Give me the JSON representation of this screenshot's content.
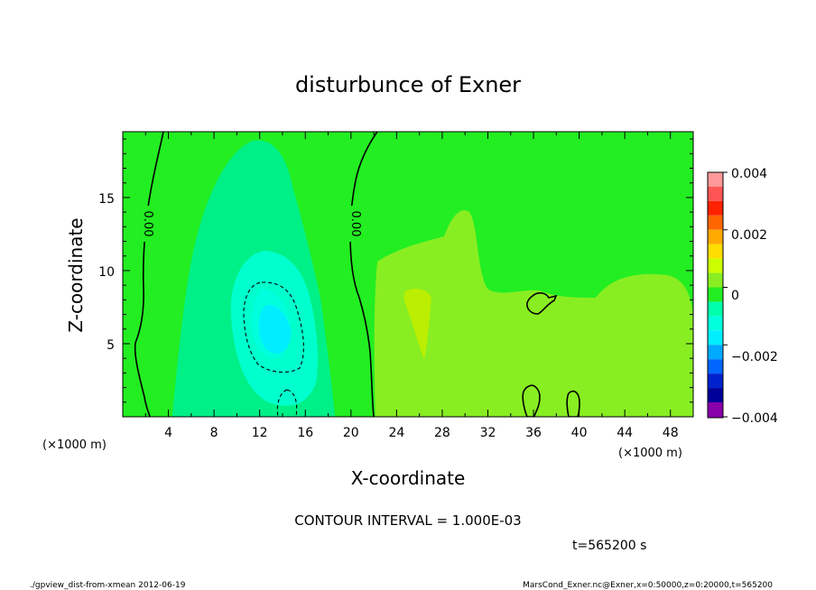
{
  "chart_data": {
    "type": "heatmap",
    "title": "disturbunce of Exner",
    "xlabel": "X-coordinate",
    "ylabel": "Z-coordinate",
    "x_unit": "(×1000 m)",
    "y_unit": "(×1000 m)",
    "x_ticks": [
      4,
      8,
      12,
      16,
      20,
      24,
      28,
      32,
      36,
      40,
      44,
      48
    ],
    "y_ticks": [
      5,
      10,
      15
    ],
    "xlim": [
      0,
      50
    ],
    "ylim": [
      0,
      19.5
    ],
    "colorbar": {
      "labels": [
        "0.004",
        "0.002",
        "0",
        "−0.002",
        "−0.004"
      ],
      "min": -0.004,
      "max": 0.004,
      "levels": [
        {
          "from": 0.0035,
          "to": 0.004,
          "color": "#ff9999"
        },
        {
          "from": 0.003,
          "to": 0.0035,
          "color": "#ff5555"
        },
        {
          "from": 0.0025,
          "to": 0.003,
          "color": "#ff2200"
        },
        {
          "from": 0.002,
          "to": 0.0025,
          "color": "#ff6600"
        },
        {
          "from": 0.0015,
          "to": 0.002,
          "color": "#ffaa00"
        },
        {
          "from": 0.001,
          "to": 0.0015,
          "color": "#ffdd00"
        },
        {
          "from": 0.0005,
          "to": 0.001,
          "color": "#ccff00"
        },
        {
          "from": 0.0,
          "to": 0.0005,
          "color": "#88ee22"
        },
        {
          "from": -0.0005,
          "to": 0.0,
          "color": "#22ee22"
        },
        {
          "from": -0.001,
          "to": -0.0005,
          "color": "#00ffaa"
        },
        {
          "from": -0.0015,
          "to": -0.001,
          "color": "#00ffdd"
        },
        {
          "from": -0.002,
          "to": -0.0015,
          "color": "#00eeff"
        },
        {
          "from": -0.0025,
          "to": -0.002,
          "color": "#00aaff"
        },
        {
          "from": -0.003,
          "to": -0.0025,
          "color": "#0066ff"
        },
        {
          "from": -0.0035,
          "to": -0.003,
          "color": "#0022cc"
        },
        {
          "from": -0.004,
          "to": -0.0035,
          "color": "#000099"
        }
      ],
      "below_color": "#8800aa"
    },
    "contour_labels": [
      "0.00",
      "0.00"
    ],
    "contour_interval": "CONTOUR INTERVAL = 1.000E-03",
    "time_label": "t=565200 s",
    "footer_left": "./gpview_dist-from-xmean  2012-06-19",
    "footer_right": "MarsCond_Exner.nc@Exner,x=0:50000,z=0:20000,t=565200"
  }
}
